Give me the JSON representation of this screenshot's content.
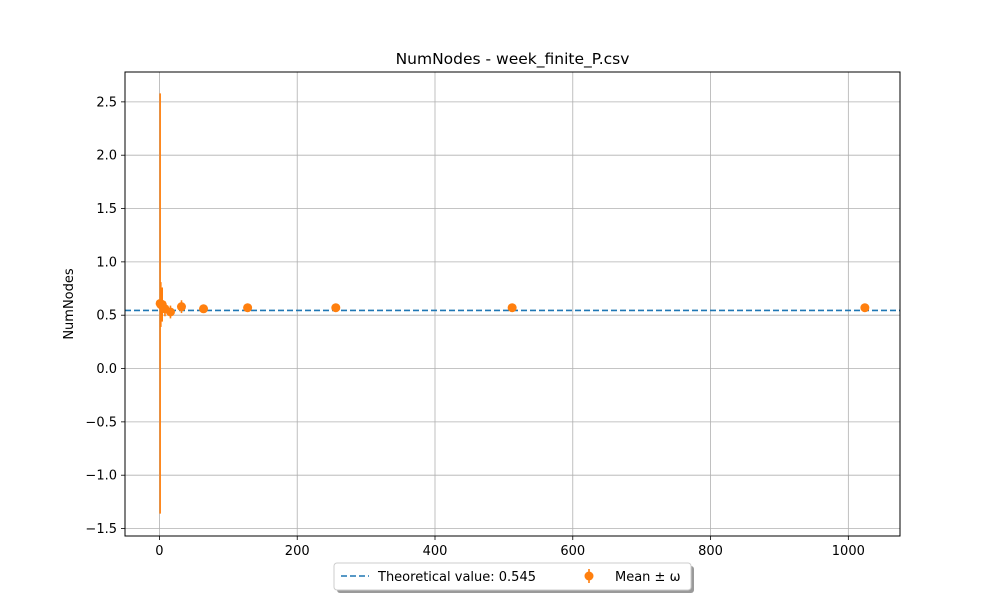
{
  "chart_data": {
    "type": "scatter",
    "title": "NumNodes - week_finite_P.csv",
    "xlabel": "",
    "ylabel": "NumNodes",
    "xlim": [
      -50,
      1075
    ],
    "ylim": [
      -1.57,
      2.78
    ],
    "x_ticks": [
      0,
      200,
      400,
      600,
      800,
      1000
    ],
    "y_ticks": [
      -1.5,
      -1.0,
      -0.5,
      0.0,
      0.5,
      1.0,
      1.5,
      2.0,
      2.5
    ],
    "x_tick_labels": [
      "0",
      "200",
      "400",
      "600",
      "800",
      "1000"
    ],
    "y_tick_labels": [
      "−1.5",
      "−1.0",
      "−0.5",
      "0.0",
      "0.5",
      "1.0",
      "1.5",
      "2.0",
      "2.5"
    ],
    "grid": true,
    "legend_position": "bottom-center, outside plot area",
    "theoretical": {
      "label": "Theoretical value: 0.545",
      "value": 0.545,
      "color": "#1f77b4",
      "style": "dashed"
    },
    "series": [
      {
        "name": "Mean ± ω",
        "color": "#ff7f0e",
        "points": [
          {
            "x": 1,
            "y": 0.61,
            "err": 1.97
          },
          {
            "x": 2,
            "y": 0.6,
            "err": 0.21
          },
          {
            "x": 4,
            "y": 0.6,
            "err": 0.16
          },
          {
            "x": 8,
            "y": 0.56,
            "err": 0.07
          },
          {
            "x": 16,
            "y": 0.53,
            "err": 0.06
          },
          {
            "x": 32,
            "y": 0.58,
            "err": 0.06
          },
          {
            "x": 64,
            "y": 0.56,
            "err": 0.03
          },
          {
            "x": 128,
            "y": 0.57,
            "err": 0.02
          },
          {
            "x": 256,
            "y": 0.57,
            "err": 0.015
          },
          {
            "x": 512,
            "y": 0.57,
            "err": 0.01
          },
          {
            "x": 1024,
            "y": 0.57,
            "err": 0.01
          }
        ]
      }
    ]
  }
}
